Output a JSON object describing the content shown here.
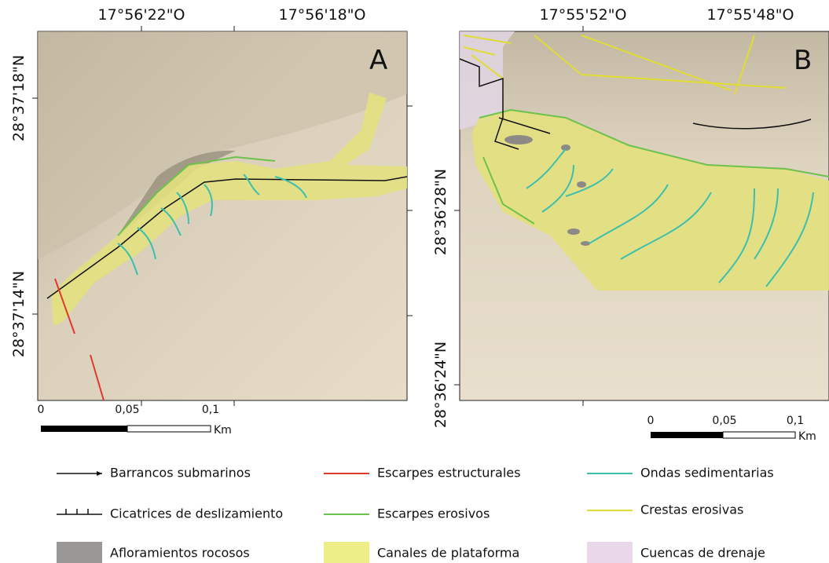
{
  "panels": [
    {
      "letter": "A",
      "top_labels": [
        "17°56'22\"O",
        "17°56'18\"O"
      ],
      "left_labels": [
        "28°37'18\"N",
        "28°37'14\"N"
      ],
      "scale_labels": [
        "0",
        "0,05",
        "0,1"
      ],
      "scale_unit": "Km"
    },
    {
      "letter": "B",
      "top_labels": [
        "17°55'52\"O",
        "17°55'48\"O"
      ],
      "left_labels": [
        "28°36'28\"N",
        "28°36'24\"N"
      ],
      "scale_labels": [
        "0",
        "0,05",
        "0,1"
      ],
      "scale_unit": "Km"
    }
  ],
  "legend": [
    "Barrancos submarinos",
    "Escarpes estructurales",
    "Ondas sedimentarias",
    "Cicatrices de deslizamiento",
    "Escarpes erosivos",
    "Crestas erosivas",
    "Afloramientos rocosos",
    "Canales de plataforma",
    "Cuencas de drenaje"
  ]
}
